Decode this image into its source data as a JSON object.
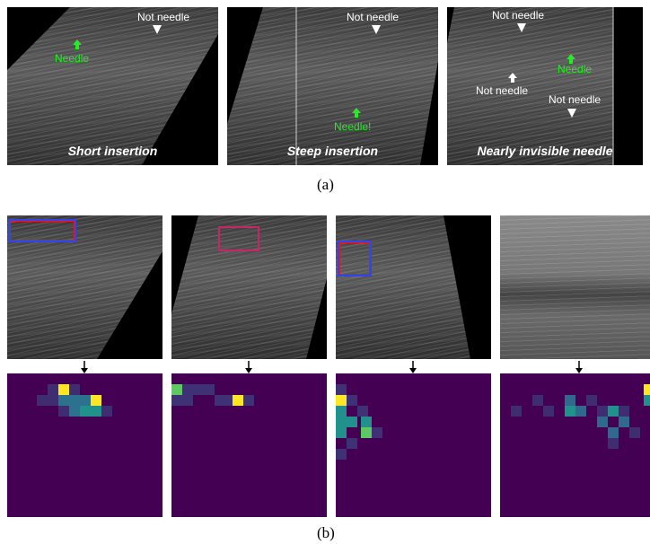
{
  "figure": {
    "row_a": {
      "panels": [
        {
          "caption": "Short insertion",
          "labels": [
            "Not needle",
            "Needle"
          ]
        },
        {
          "caption": "Steep insertion",
          "labels": [
            "Not needle",
            "Needle!"
          ]
        },
        {
          "caption": "Nearly invisible needle",
          "labels": [
            "Not needle",
            "Needle",
            "Not needle",
            "Not needle"
          ]
        }
      ],
      "subcaption": "(a)"
    },
    "row_b": {
      "subcaption": "(b)"
    }
  },
  "colors": {
    "needle_label": "#22ee22",
    "heat_bg": "#440154",
    "heat_low": "#3b528b",
    "heat_mid": "#21918c",
    "heat_high": "#5ec962",
    "heat_peak": "#fde725",
    "bbox_blue": "#3344ee",
    "bbox_red": "#cc2222"
  },
  "icons": [
    "arrow-up-icon",
    "arrow-down-icon"
  ]
}
